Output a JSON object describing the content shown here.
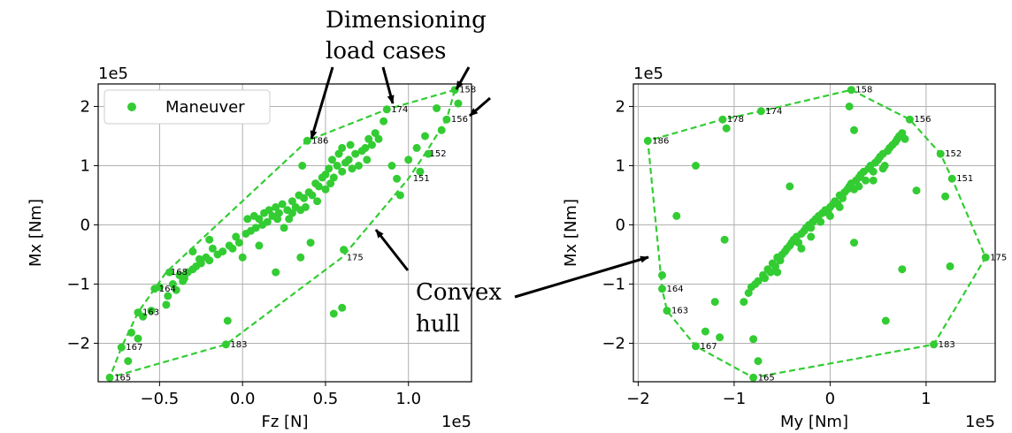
{
  "colors": {
    "point": "#33cc33",
    "hull": "#33cc33",
    "grid": "#b0b0b0",
    "arrow": "#000000"
  },
  "annotations": {
    "dimensioning": [
      "Dimensioning",
      "load cases"
    ],
    "convex": [
      "Convex",
      "hull"
    ]
  },
  "chart_data": [
    {
      "type": "scatter",
      "xlabel": "Fz [N]",
      "ylabel": "Mx [Nm]",
      "x_offset_text": "1e5",
      "y_offset_text": "1e5",
      "xlim": [
        -0.87,
        1.38
      ],
      "ylim": [
        -2.65,
        2.38
      ],
      "xticks": [
        -0.5,
        0.0,
        0.5,
        1.0
      ],
      "xtick_labels": [
        "−0.5",
        "0.0",
        "0.5",
        "1.0"
      ],
      "yticks": [
        -2,
        -1,
        0,
        1,
        2
      ],
      "ytick_labels": [
        "−2",
        "−1",
        "0",
        "1",
        "2"
      ],
      "grid": true,
      "legend": {
        "position": "top-left",
        "entries": [
          "Maneuver"
        ]
      },
      "series": [
        {
          "name": "Maneuver",
          "scatter_points": [
            [
              -0.8,
              -2.58
            ],
            [
              -0.73,
              -2.07
            ],
            [
              -0.69,
              -2.3
            ],
            [
              -0.67,
              -1.82
            ],
            [
              -0.63,
              -1.92
            ],
            [
              -0.63,
              -1.48
            ],
            [
              -0.6,
              -1.55
            ],
            [
              -0.55,
              -1.45
            ],
            [
              -0.53,
              -1.08
            ],
            [
              -0.5,
              -1.05
            ],
            [
              -0.46,
              -1.35
            ],
            [
              -0.45,
              -1.2
            ],
            [
              -0.44,
              -0.8
            ],
            [
              -0.42,
              -1.0
            ],
            [
              -0.4,
              -1.1
            ],
            [
              -0.38,
              -0.85
            ],
            [
              -0.36,
              -0.95
            ],
            [
              -0.35,
              -0.9
            ],
            [
              -0.33,
              -0.8
            ],
            [
              -0.3,
              -0.75
            ],
            [
              -0.28,
              -0.7
            ],
            [
              -0.26,
              -0.58
            ],
            [
              -0.25,
              -0.65
            ],
            [
              -0.22,
              -0.55
            ],
            [
              -0.2,
              -0.6
            ],
            [
              -0.18,
              -0.4
            ],
            [
              -0.15,
              -0.5
            ],
            [
              -0.12,
              -0.45
            ],
            [
              -0.1,
              -2.02
            ],
            [
              -0.09,
              -1.62
            ],
            [
              -0.08,
              -0.35
            ],
            [
              -0.06,
              -0.4
            ],
            [
              -0.04,
              -0.2
            ],
            [
              -0.02,
              -0.3
            ],
            [
              0.0,
              -0.55
            ],
            [
              0.02,
              -0.15
            ],
            [
              0.03,
              0.1
            ],
            [
              0.05,
              -0.1
            ],
            [
              0.07,
              0.15
            ],
            [
              0.08,
              -0.05
            ],
            [
              0.1,
              0.1
            ],
            [
              0.12,
              0.0
            ],
            [
              0.13,
              0.2
            ],
            [
              0.15,
              0.05
            ],
            [
              0.16,
              0.25
            ],
            [
              0.18,
              0.15
            ],
            [
              0.2,
              0.3
            ],
            [
              0.21,
              0.1
            ],
            [
              0.22,
              0.2
            ],
            [
              0.24,
              0.35
            ],
            [
              0.25,
              -0.05
            ],
            [
              0.27,
              0.25
            ],
            [
              0.28,
              0.1
            ],
            [
              0.3,
              0.4
            ],
            [
              0.3,
              0.2
            ],
            [
              0.32,
              0.3
            ],
            [
              0.34,
              0.5
            ],
            [
              0.35,
              0.25
            ],
            [
              0.36,
              1.0
            ],
            [
              0.37,
              0.45
            ],
            [
              0.38,
              0.3
            ],
            [
              0.39,
              1.42
            ],
            [
              0.4,
              0.55
            ],
            [
              0.41,
              -0.3
            ],
            [
              0.42,
              0.5
            ],
            [
              0.44,
              0.7
            ],
            [
              0.45,
              0.4
            ],
            [
              0.46,
              0.65
            ],
            [
              0.48,
              0.8
            ],
            [
              0.5,
              0.6
            ],
            [
              0.5,
              0.85
            ],
            [
              0.52,
              0.95
            ],
            [
              0.53,
              0.7
            ],
            [
              0.54,
              1.1
            ],
            [
              0.55,
              0.8
            ],
            [
              0.57,
              1.0
            ],
            [
              0.58,
              1.2
            ],
            [
              0.6,
              0.9
            ],
            [
              0.6,
              1.3
            ],
            [
              0.61,
              -0.42
            ],
            [
              0.62,
              1.05
            ],
            [
              0.64,
              1.1
            ],
            [
              0.65,
              1.35
            ],
            [
              0.66,
              0.95
            ],
            [
              0.68,
              1.2
            ],
            [
              0.7,
              1.0
            ],
            [
              0.72,
              1.25
            ],
            [
              0.74,
              1.3
            ],
            [
              0.75,
              1.1
            ],
            [
              0.76,
              1.45
            ],
            [
              0.78,
              1.35
            ],
            [
              0.8,
              1.55
            ],
            [
              0.82,
              1.45
            ],
            [
              0.85,
              1.75
            ],
            [
              0.87,
              1.95
            ],
            [
              0.9,
              1.0
            ],
            [
              0.93,
              0.78
            ],
            [
              0.95,
              0.5
            ],
            [
              1.0,
              1.1
            ],
            [
              1.05,
              1.3
            ],
            [
              1.07,
              0.9
            ],
            [
              1.1,
              1.5
            ],
            [
              1.12,
              1.2
            ],
            [
              1.17,
              1.97
            ],
            [
              1.2,
              1.6
            ],
            [
              1.23,
              1.78
            ],
            [
              1.28,
              2.28
            ],
            [
              1.3,
              2.05
            ],
            [
              0.55,
              -1.5
            ],
            [
              0.6,
              -1.4
            ],
            [
              -0.3,
              -0.45
            ],
            [
              -0.2,
              -0.25
            ],
            [
              0.1,
              -0.35
            ],
            [
              0.2,
              -0.8
            ],
            [
              0.35,
              -0.55
            ]
          ]
        }
      ],
      "hull_vertices": [
        {
          "label": "158",
          "x": 1.28,
          "y": 2.28
        },
        {
          "label": "156",
          "x": 1.23,
          "y": 1.78
        },
        {
          "label": "152",
          "x": 1.1,
          "y": 1.2
        },
        {
          "label": "151",
          "x": 1.0,
          "y": 0.78
        },
        {
          "label": "175",
          "x": 0.6,
          "y": -0.55
        },
        {
          "label": "183",
          "x": -0.1,
          "y": -2.02
        },
        {
          "label": "165",
          "x": -0.8,
          "y": -2.58
        },
        {
          "label": "167",
          "x": -0.73,
          "y": -2.07
        },
        {
          "label": "163",
          "x": -0.63,
          "y": -1.48
        },
        {
          "label": "164",
          "x": -0.53,
          "y": -1.08
        },
        {
          "label": "168",
          "x": -0.46,
          "y": -0.8
        },
        {
          "label": "186",
          "x": 0.39,
          "y": 1.42
        },
        {
          "label": "174",
          "x": 0.87,
          "y": 1.95
        }
      ]
    },
    {
      "type": "scatter",
      "xlabel": "My [Nm]",
      "ylabel": "Mx [Nm]",
      "x_offset_text": "1e5",
      "y_offset_text": "1e5",
      "xlim": [
        -2.05,
        1.72
      ],
      "ylim": [
        -2.65,
        2.38
      ],
      "xticks": [
        -2,
        -1,
        0,
        1
      ],
      "xtick_labels": [
        "−2",
        "−1",
        "0",
        "1"
      ],
      "yticks": [
        -2,
        -1,
        0,
        1,
        2
      ],
      "ytick_labels": [
        "−2",
        "−1",
        "0",
        "1",
        "2"
      ],
      "grid": true,
      "legend": null,
      "series": [
        {
          "name": "Maneuver",
          "scatter_points": [
            [
              -0.8,
              -2.58
            ],
            [
              -1.4,
              -2.05
            ],
            [
              -1.7,
              -1.45
            ],
            [
              -1.75,
              -1.08
            ],
            [
              -1.75,
              -0.85
            ],
            [
              -1.9,
              1.42
            ],
            [
              -1.12,
              1.78
            ],
            [
              -1.08,
              1.63
            ],
            [
              -0.72,
              1.92
            ],
            [
              0.22,
              2.28
            ],
            [
              0.2,
              2.0
            ],
            [
              0.83,
              1.78
            ],
            [
              1.15,
              1.2
            ],
            [
              1.27,
              0.78
            ],
            [
              1.62,
              -0.55
            ],
            [
              1.08,
              -2.02
            ],
            [
              -1.6,
              0.15
            ],
            [
              -1.4,
              1.0
            ],
            [
              -1.1,
              -0.25
            ],
            [
              -1.2,
              -1.3
            ],
            [
              -1.15,
              -1.9
            ],
            [
              -0.75,
              -2.3
            ],
            [
              -0.8,
              -1.93
            ],
            [
              -0.42,
              0.65
            ],
            [
              0.25,
              1.6
            ],
            [
              0.25,
              -0.3
            ],
            [
              0.58,
              -1.62
            ],
            [
              0.75,
              -0.75
            ],
            [
              0.9,
              0.58
            ],
            [
              1.2,
              0.48
            ],
            [
              1.25,
              -0.7
            ],
            [
              -1.3,
              -1.8
            ],
            [
              -0.9,
              -1.3
            ],
            [
              -0.85,
              -1.15
            ],
            [
              -0.82,
              -1.05
            ],
            [
              -0.78,
              -1.0
            ],
            [
              -0.75,
              -0.95
            ],
            [
              -0.7,
              -0.85
            ],
            [
              -0.68,
              -0.9
            ],
            [
              -0.65,
              -0.75
            ],
            [
              -0.62,
              -0.8
            ],
            [
              -0.6,
              -0.65
            ],
            [
              -0.57,
              -0.7
            ],
            [
              -0.55,
              -0.55
            ],
            [
              -0.52,
              -0.6
            ],
            [
              -0.5,
              -0.5
            ],
            [
              -0.47,
              -0.45
            ],
            [
              -0.45,
              -0.4
            ],
            [
              -0.42,
              -0.35
            ],
            [
              -0.4,
              -0.3
            ],
            [
              -0.38,
              -0.25
            ],
            [
              -0.35,
              -0.2
            ],
            [
              -0.33,
              -0.3
            ],
            [
              -0.3,
              -0.15
            ],
            [
              -0.27,
              -0.1
            ],
            [
              -0.25,
              -0.05
            ],
            [
              -0.22,
              0.0
            ],
            [
              -0.2,
              -0.05
            ],
            [
              -0.18,
              0.05
            ],
            [
              -0.15,
              0.1
            ],
            [
              -0.12,
              0.15
            ],
            [
              -0.1,
              0.05
            ],
            [
              -0.08,
              0.2
            ],
            [
              -0.05,
              0.25
            ],
            [
              -0.02,
              0.2
            ],
            [
              0.0,
              0.3
            ],
            [
              0.03,
              0.35
            ],
            [
              0.05,
              0.4
            ],
            [
              0.08,
              0.35
            ],
            [
              0.1,
              0.5
            ],
            [
              0.13,
              0.45
            ],
            [
              0.15,
              0.55
            ],
            [
              0.18,
              0.6
            ],
            [
              0.2,
              0.65
            ],
            [
              0.22,
              0.7
            ],
            [
              0.25,
              0.6
            ],
            [
              0.27,
              0.75
            ],
            [
              0.3,
              0.8
            ],
            [
              0.32,
              0.85
            ],
            [
              0.35,
              0.9
            ],
            [
              0.37,
              0.75
            ],
            [
              0.4,
              0.95
            ],
            [
              0.42,
              1.0
            ],
            [
              0.45,
              0.9
            ],
            [
              0.47,
              1.05
            ],
            [
              0.5,
              1.1
            ],
            [
              0.52,
              1.15
            ],
            [
              0.55,
              1.2
            ],
            [
              0.57,
              1.0
            ],
            [
              0.6,
              1.25
            ],
            [
              0.62,
              1.3
            ],
            [
              0.65,
              1.35
            ],
            [
              0.68,
              1.4
            ],
            [
              0.7,
              1.45
            ],
            [
              0.72,
              1.5
            ],
            [
              0.75,
              1.55
            ],
            [
              0.78,
              1.45
            ],
            [
              -0.3,
              -0.4
            ],
            [
              -0.2,
              -0.2
            ],
            [
              0.0,
              0.15
            ],
            [
              0.1,
              0.3
            ],
            [
              0.3,
              0.65
            ],
            [
              0.45,
              0.75
            ],
            [
              0.55,
              0.95
            ],
            [
              -0.55,
              -0.8
            ]
          ]
        }
      ],
      "hull_vertices": [
        {
          "label": "158",
          "x": 0.22,
          "y": 2.28
        },
        {
          "label": "156",
          "x": 0.83,
          "y": 1.78
        },
        {
          "label": "152",
          "x": 1.15,
          "y": 1.2
        },
        {
          "label": "151",
          "x": 1.27,
          "y": 0.78
        },
        {
          "label": "175",
          "x": 1.62,
          "y": -0.55
        },
        {
          "label": "183",
          "x": 1.08,
          "y": -2.02
        },
        {
          "label": "165",
          "x": -0.8,
          "y": -2.58
        },
        {
          "label": "167",
          "x": -1.4,
          "y": -2.05
        },
        {
          "label": "163",
          "x": -1.7,
          "y": -1.45
        },
        {
          "label": "164",
          "x": -1.75,
          "y": -1.08
        },
        {
          "label": "186",
          "x": -1.9,
          "y": 1.42
        },
        {
          "label": "178",
          "x": -1.12,
          "y": 1.78
        },
        {
          "label": "174",
          "x": -0.72,
          "y": 1.92
        }
      ]
    }
  ]
}
